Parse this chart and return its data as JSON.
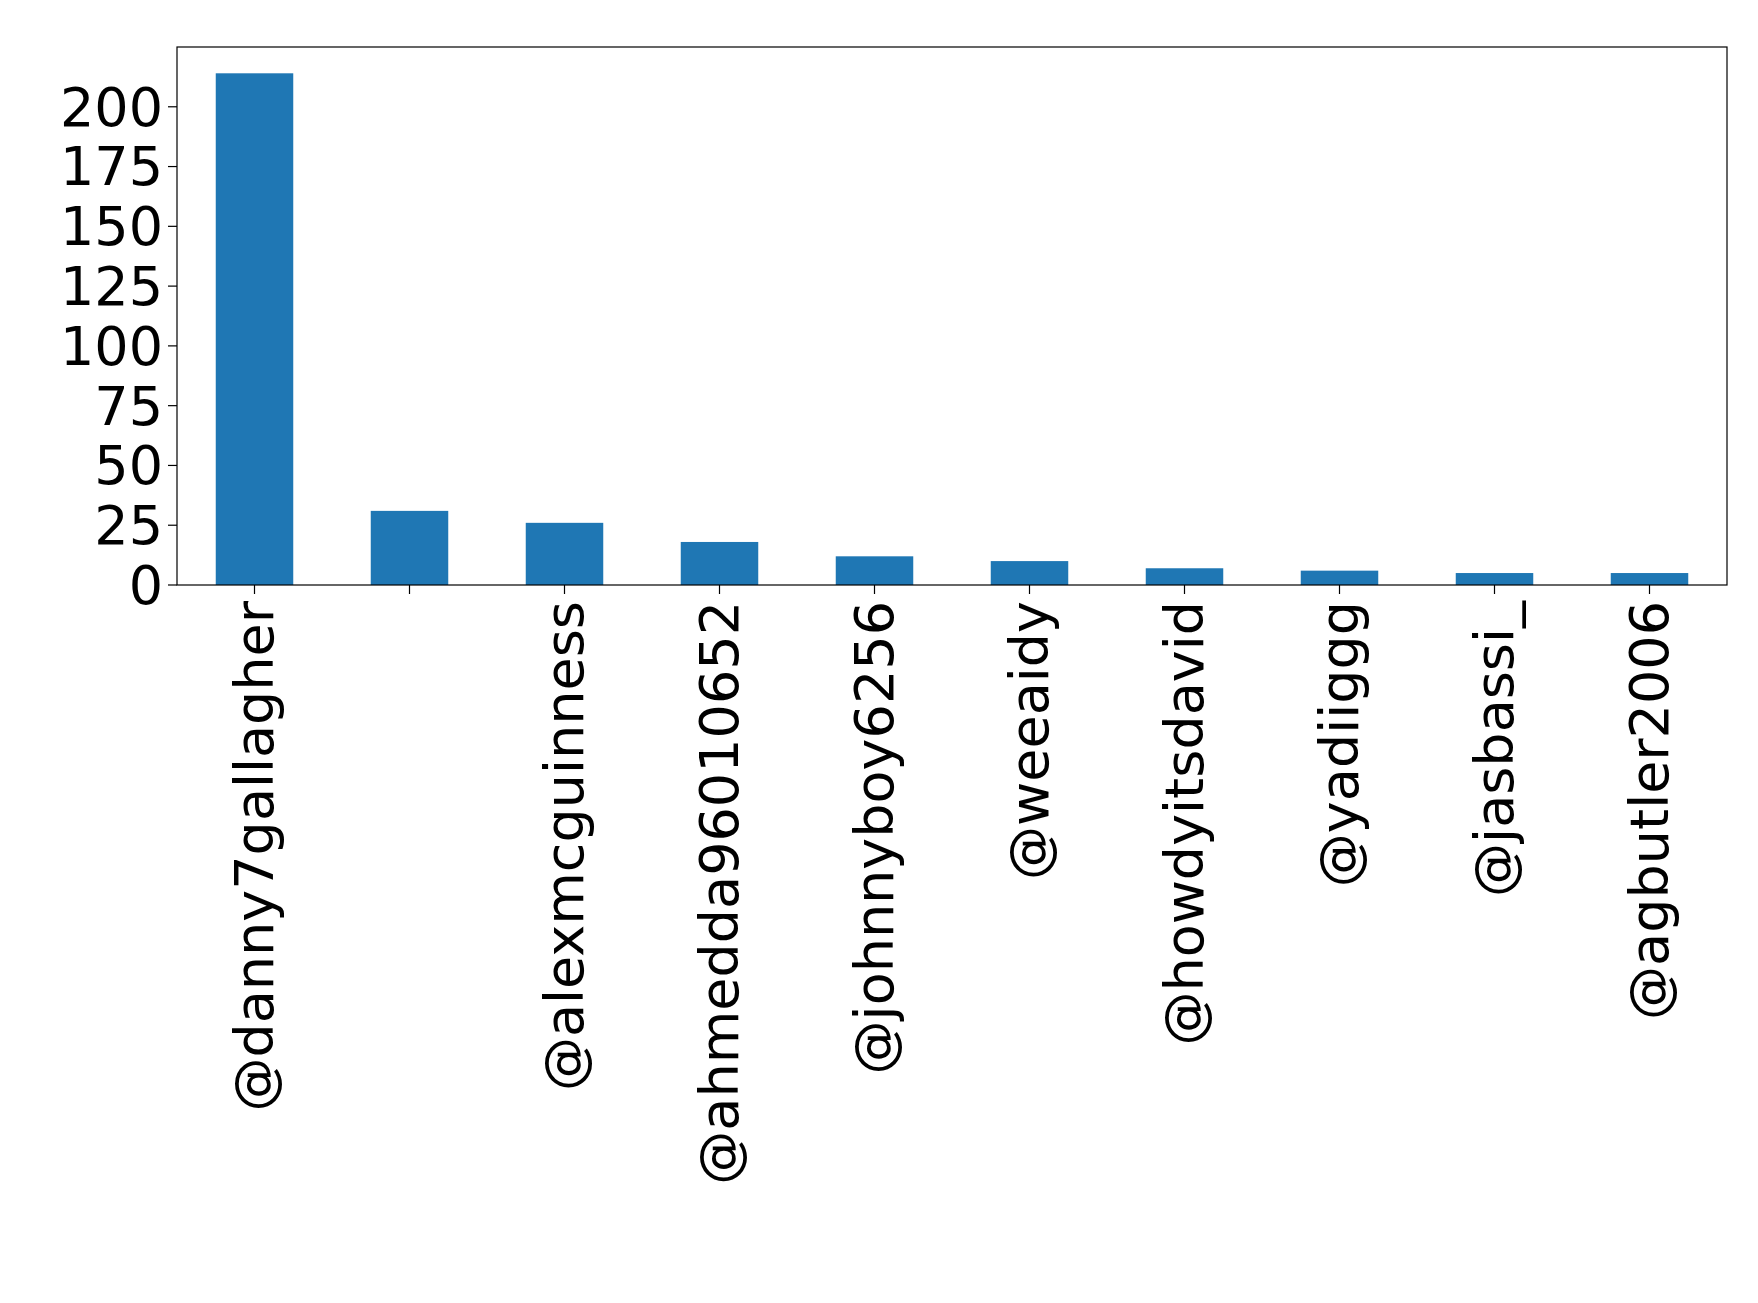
{
  "chart_data": {
    "type": "bar",
    "categories": [
      "@danny7gallagher",
      null,
      "@alexmcguinness",
      "@ahmedda96010652",
      "@johnnyboy6256",
      "@weeaidy",
      "@howdyitsdavid",
      "@yadiiggg",
      "@jasbassi_",
      "@agbutler2006"
    ],
    "values": [
      214,
      31,
      26,
      18,
      12,
      10,
      7,
      6,
      5,
      5
    ],
    "color": "#1f77b4",
    "ylim": [
      0,
      225
    ],
    "yticks": [
      0,
      25,
      50,
      75,
      100,
      125,
      150,
      175,
      200
    ],
    "grid": false
  }
}
